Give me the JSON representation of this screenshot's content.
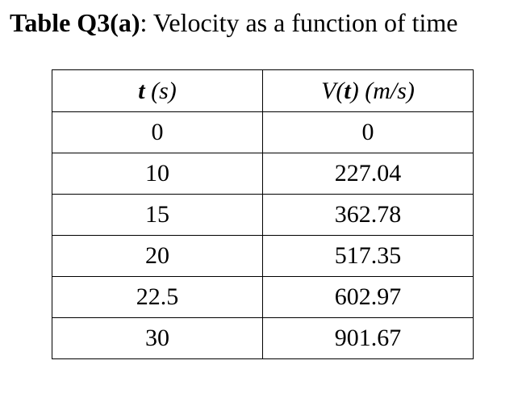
{
  "caption": {
    "label": "Table Q3(a)",
    "text": ": Velocity as a function of time"
  },
  "table": {
    "headers": {
      "col1_var": "t",
      "col1_unit": " (s)",
      "col2_pre": "V(",
      "col2_var": "t",
      "col2_post": ") (m/s)"
    },
    "rows": [
      {
        "t": "0",
        "v": "0"
      },
      {
        "t": "10",
        "v": "227.04"
      },
      {
        "t": "15",
        "v": "362.78"
      },
      {
        "t": "20",
        "v": "517.35"
      },
      {
        "t": "22.5",
        "v": "602.97"
      },
      {
        "t": "30",
        "v": "901.67"
      }
    ]
  }
}
